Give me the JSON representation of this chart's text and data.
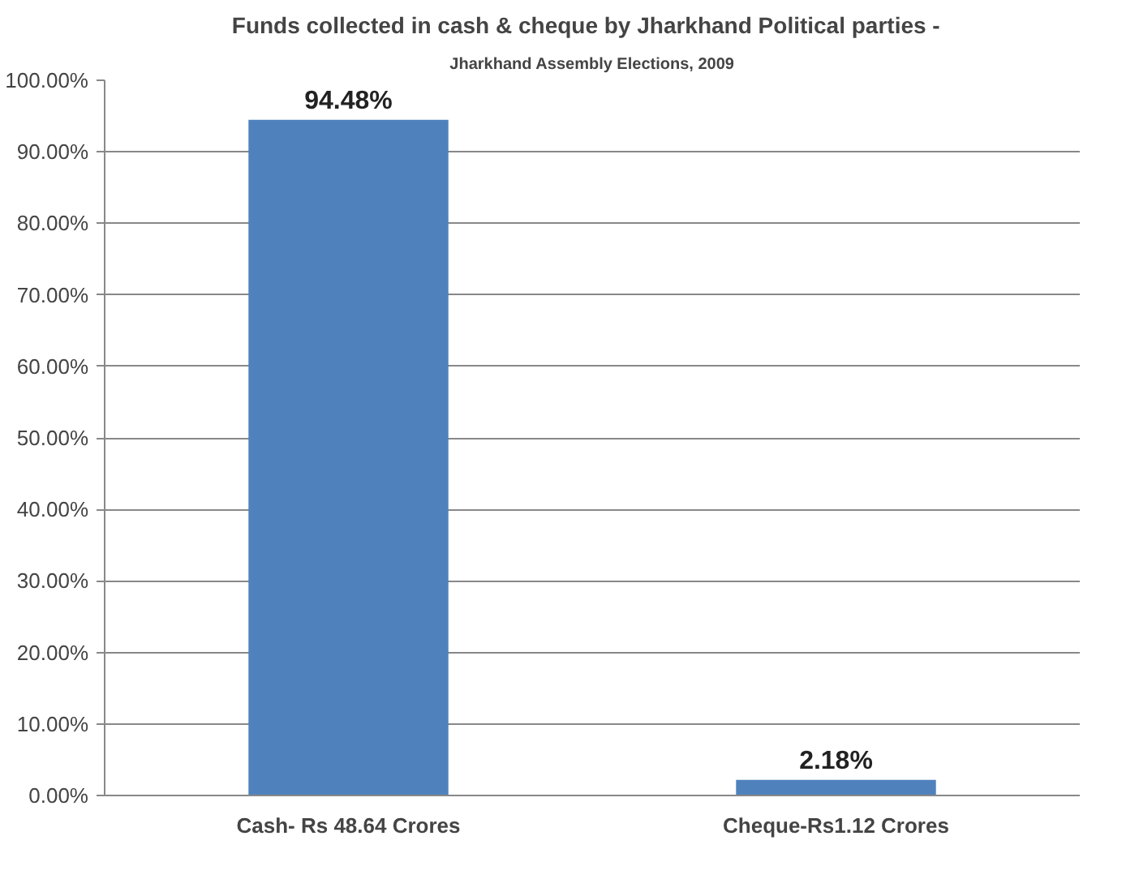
{
  "chart_data": {
    "type": "bar",
    "title": "Funds collected in  cash & cheque by  Jharkhand Political parties -",
    "subtitle": "Jharkhand Assembly Elections, 2009",
    "categories": [
      "Cash- Rs 48.64 Crores",
      "Cheque-Rs1.12 Crores"
    ],
    "values": [
      94.48,
      2.18
    ],
    "color": "#4f81bd",
    "value_labels": [
      "94.48%",
      "2.18%"
    ],
    "ylim": [
      0,
      100
    ],
    "yticks": [
      {
        "value": 0,
        "label": "0.00%"
      },
      {
        "value": 10,
        "label": "10.00%"
      },
      {
        "value": 20,
        "label": "20.00%"
      },
      {
        "value": 30,
        "label": "30.00%"
      },
      {
        "value": 40,
        "label": "40.00%"
      },
      {
        "value": 50,
        "label": "50.00%"
      },
      {
        "value": 60,
        "label": "60.00%"
      },
      {
        "value": 70,
        "label": "70.00%"
      },
      {
        "value": 80,
        "label": "80.00%"
      },
      {
        "value": 90,
        "label": "90.00%"
      },
      {
        "value": 100,
        "label": "100.00%"
      }
    ],
    "grid": "y"
  }
}
